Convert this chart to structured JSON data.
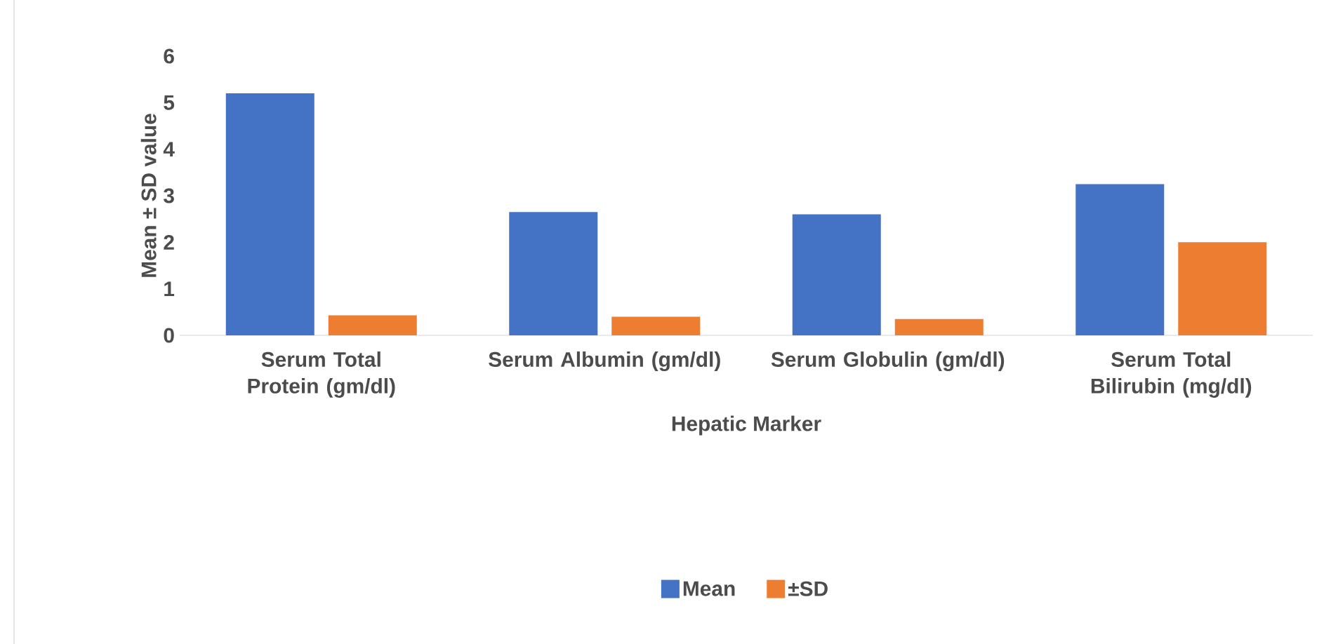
{
  "chart_data": {
    "type": "bar",
    "xlabel": "Hepatic Marker",
    "ylabel": "Mean ± SD value",
    "categories": [
      "Serum Total Protein (gm/dl)",
      "Serum Albumin (gm/dl)",
      "Serum Globulin (gm/dl)",
      "Serum Total Bilirubin (mg/dl)"
    ],
    "series": [
      {
        "name": "Mean",
        "color": "#4472c4",
        "values": [
          5.2,
          2.65,
          2.6,
          3.25
        ]
      },
      {
        "name": "±SD",
        "color": "#ed7d31",
        "values": [
          0.43,
          0.4,
          0.35,
          2.0
        ]
      }
    ],
    "ylim": [
      0,
      6
    ],
    "yticks": [
      0,
      1,
      2,
      3,
      4,
      5,
      6
    ],
    "legend": "bottom"
  }
}
